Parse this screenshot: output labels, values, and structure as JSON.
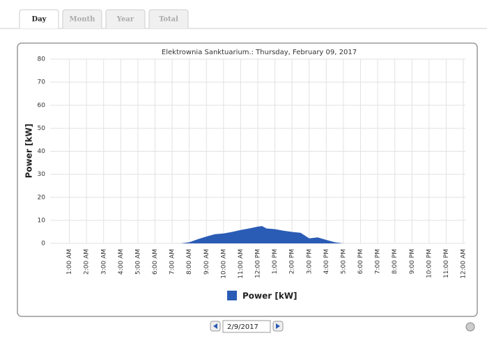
{
  "tabs": [
    "Day",
    "Month",
    "Year",
    "Total"
  ],
  "date": "2/9/2017",
  "chart_data": {
    "type": "area",
    "title": "Elektrownia Sanktuarium.: Thursday, February 09, 2017",
    "y_label": "Power [kW]",
    "x": [
      7.5,
      8,
      8.5,
      9,
      9.5,
      10,
      10.5,
      11,
      11.5,
      12,
      12.25,
      12.5,
      13,
      13.5,
      14,
      14.5,
      15,
      15.5,
      16,
      16.5,
      17
    ],
    "series": [
      {
        "name": "Power [kW]",
        "color": "#2b5cb5",
        "values": [
          0,
          0.5,
          1.8,
          3,
          4,
          4.3,
          5,
          5.8,
          6.5,
          7.3,
          7.5,
          6.5,
          6.2,
          5.5,
          5,
          4.6,
          2.2,
          2.6,
          1.5,
          0.5,
          0
        ]
      }
    ],
    "xlim": [
      0,
      24
    ],
    "xticks": [
      {
        "value": 1,
        "label": "1:00 AM"
      },
      {
        "value": 2,
        "label": "2:00 AM"
      },
      {
        "value": 3,
        "label": "3:00 AM"
      },
      {
        "value": 4,
        "label": "4:00 AM"
      },
      {
        "value": 5,
        "label": "5:00 AM"
      },
      {
        "value": 6,
        "label": "6:00 AM"
      },
      {
        "value": 7,
        "label": "7:00 AM"
      },
      {
        "value": 8,
        "label": "8:00 AM"
      },
      {
        "value": 9,
        "label": "9:00 AM"
      },
      {
        "value": 10,
        "label": "10:00 AM"
      },
      {
        "value": 11,
        "label": "11:00 AM"
      },
      {
        "value": 12,
        "label": "12:00 PM"
      },
      {
        "value": 13,
        "label": "1:00 PM"
      },
      {
        "value": 14,
        "label": "2:00 PM"
      },
      {
        "value": 15,
        "label": "3:00 PM"
      },
      {
        "value": 16,
        "label": "4:00 PM"
      },
      {
        "value": 17,
        "label": "5:00 PM"
      },
      {
        "value": 18,
        "label": "6:00 PM"
      },
      {
        "value": 19,
        "label": "7:00 PM"
      },
      {
        "value": 20,
        "label": "8:00 PM"
      },
      {
        "value": 21,
        "label": "9:00 PM"
      },
      {
        "value": 22,
        "label": "10:00 PM"
      },
      {
        "value": 23,
        "label": "11:00 PM"
      },
      {
        "value": 24,
        "label": "12:00 AM"
      }
    ],
    "ylim": [
      0,
      80
    ],
    "yticks": [
      0,
      10,
      20,
      30,
      40,
      50,
      60,
      70,
      80
    ],
    "grid": true
  }
}
